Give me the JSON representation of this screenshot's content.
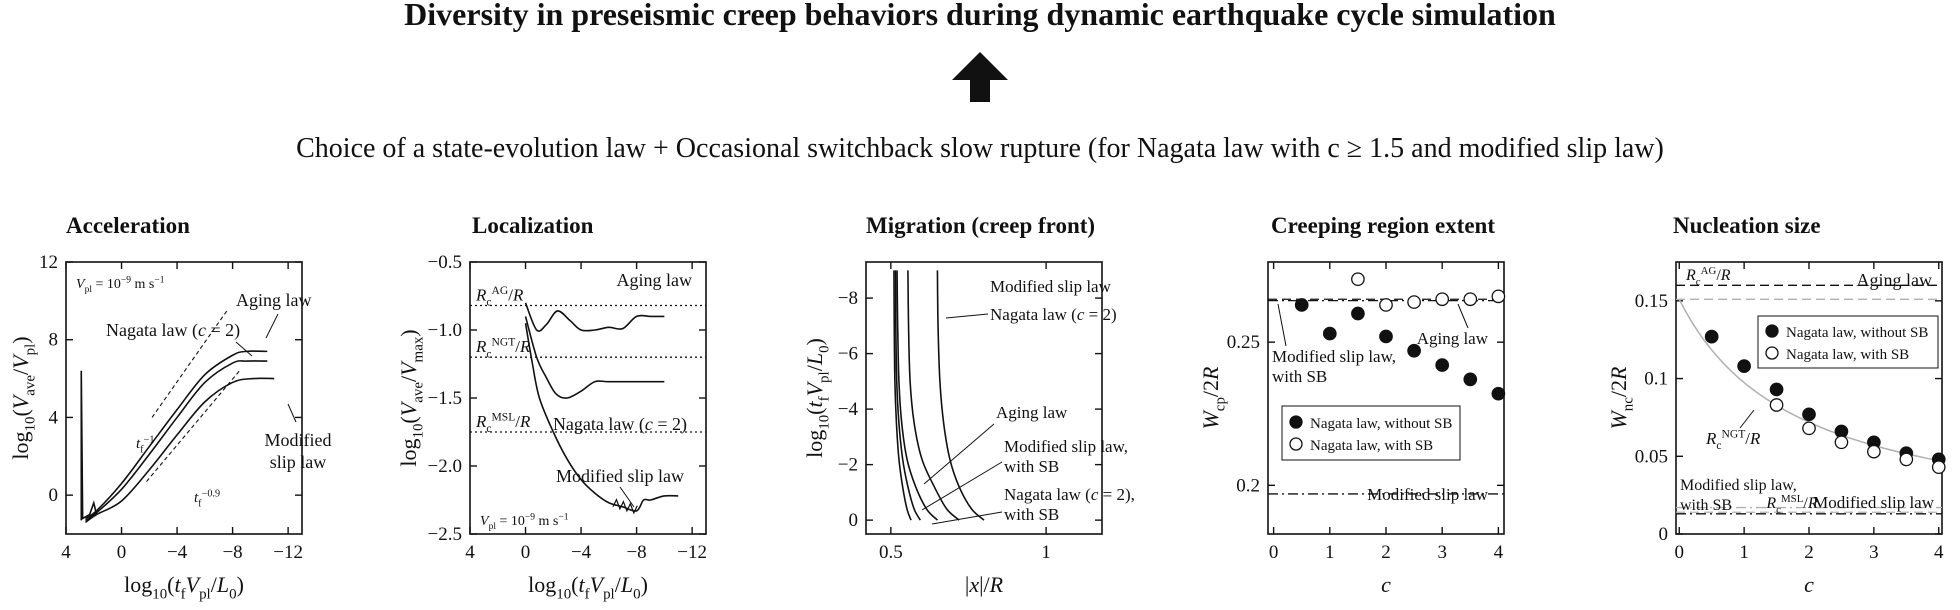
{
  "title": "Diversity in preseismic creep behaviors during dynamic earthquake cycle simulation",
  "subtitle": "Choice of a state-evolution law + Occasional switchback slow rupture (for Nagata law with c ≥ 1.5 and modified slip law)",
  "arrow_icon": "up-arrow-icon",
  "colors": {
    "ink": "#111111",
    "gray_line": "#b0b0b0"
  },
  "chart_data": [
    {
      "panel_title": "Acceleration",
      "type": "line",
      "xlabel": "log10(tfVpl/L0)",
      "ylabel": "log10(Vave/Vpl)",
      "xlim": [
        4,
        -13
      ],
      "ylim": [
        -2,
        12
      ],
      "xticks": [
        "4",
        "0",
        "−4",
        "−8",
        "−12"
      ],
      "yticks": [
        "0",
        "4",
        "8",
        "12"
      ],
      "annotations": [
        "Vpl = 10⁻⁹ m s⁻¹",
        "Aging law",
        "Nagata law (c = 2)",
        "Modified slip law",
        "tf⁻¹",
        "tf⁻⁰·⁹"
      ],
      "series": [
        {
          "name": "Aging law",
          "x": [
            2.6,
            1.8,
            0,
            -2,
            -4,
            -6,
            -8,
            -9,
            -10.5
          ],
          "y": [
            -1.2,
            -0.8,
            0.6,
            2.5,
            4.4,
            6.2,
            7.2,
            7.4,
            7.4
          ]
        },
        {
          "name": "Nagata law (c = 2)",
          "x": [
            2.6,
            1.8,
            0,
            -2,
            -4,
            -6,
            -8,
            -9,
            -10.5
          ],
          "y": [
            -1.3,
            -0.9,
            0.3,
            2.1,
            4.0,
            5.8,
            6.8,
            6.9,
            6.9
          ]
        },
        {
          "name": "Modified slip law",
          "x": [
            2.6,
            1.8,
            0,
            -2,
            -4,
            -6,
            -8,
            -9.5,
            -11
          ],
          "y": [
            -1.4,
            -1.0,
            -0.3,
            1.3,
            3.1,
            4.8,
            5.8,
            6.0,
            6.0
          ]
        }
      ]
    },
    {
      "panel_title": "Localization",
      "type": "line",
      "xlabel": "log10(tfVpl/L0)",
      "ylabel": "log10(Vave/Vmax)",
      "xlim": [
        4,
        -13
      ],
      "ylim": [
        -2.5,
        -0.5
      ],
      "xticks": [
        "4",
        "0",
        "−4",
        "−8",
        "−12"
      ],
      "yticks": [
        "−0.5",
        "−1.0",
        "−1.5",
        "−2.0",
        "−2.5"
      ],
      "reference_lines": [
        {
          "label": "RcAG/R",
          "y": -0.82
        },
        {
          "label": "RcNGT/R",
          "y": -1.2
        },
        {
          "label": "RcMSL/R",
          "y": -1.75
        }
      ],
      "annotations": [
        "Vpl = 10⁻⁹ m s⁻¹"
      ],
      "series": [
        {
          "name": "Aging law",
          "x": [
            0,
            -0.8,
            -1.5,
            -2.3,
            -3.2,
            -4,
            -5,
            -6,
            -7,
            -8,
            -9,
            -10
          ],
          "y": [
            -0.8,
            -1.0,
            -0.96,
            -0.86,
            -0.93,
            -1.0,
            -1.0,
            -0.98,
            -0.99,
            -0.9,
            -0.9,
            -0.9
          ]
        },
        {
          "name": "Nagata law (c = 2)",
          "x": [
            0,
            -0.8,
            -1.5,
            -2.2,
            -3,
            -4,
            -5,
            -6,
            -8,
            -10
          ],
          "y": [
            -0.9,
            -1.2,
            -1.35,
            -1.47,
            -1.5,
            -1.45,
            -1.38,
            -1.38,
            -1.38,
            -1.38
          ]
        },
        {
          "name": "Modified slip law",
          "x": [
            0,
            -0.5,
            -1,
            -2,
            -3,
            -4,
            -5,
            -6,
            -7,
            -8,
            -8.5,
            -9,
            -10,
            -11
          ],
          "y": [
            -0.95,
            -1.25,
            -1.5,
            -1.75,
            -1.95,
            -2.1,
            -2.2,
            -2.27,
            -2.3,
            -2.33,
            -2.25,
            -2.25,
            -2.22,
            -2.22
          ]
        }
      ]
    },
    {
      "panel_title": "Migration (creep front)",
      "type": "line",
      "xlabel": "|x|/R",
      "ylabel": "log10(tfVpl/L0)",
      "xlim": [
        0.42,
        1.18
      ],
      "ylim": [
        0.5,
        -9.3
      ],
      "xticks": [
        "0.5",
        "1"
      ],
      "yticks": [
        "0",
        "−2",
        "−4",
        "−6",
        "−8"
      ],
      "annotations": [
        "Modified slip law",
        "Nagata law (c = 2)",
        "Aging law",
        "Modified slip law, with SB",
        "Nagata law (c = 2), with SB"
      ],
      "series": [
        {
          "name": "Modified slip law",
          "x": [
            0.65,
            0.652,
            0.658,
            0.67,
            0.69,
            0.72,
            0.76,
            0.8
          ],
          "y": [
            -9,
            -7,
            -5,
            -3.5,
            -2.2,
            -1.2,
            -0.4,
            0
          ]
        },
        {
          "name": "Nagata law (c = 2)",
          "x": [
            0.555,
            0.557,
            0.562,
            0.575,
            0.6,
            0.64,
            0.68,
            0.72
          ],
          "y": [
            -9,
            -7,
            -5,
            -3.5,
            -2.2,
            -1.2,
            -0.4,
            0
          ]
        },
        {
          "name": "Aging law",
          "x": [
            0.52,
            0.522,
            0.526,
            0.535,
            0.552,
            0.58,
            0.615,
            0.65
          ],
          "y": [
            -9,
            -7,
            -5,
            -3.5,
            -2.2,
            -1.2,
            -0.4,
            0
          ]
        },
        {
          "name": "Modified slip law, with SB",
          "x": [
            0.515,
            0.516,
            0.519,
            0.526,
            0.538,
            0.555,
            0.575,
            0.595
          ],
          "y": [
            -9,
            -7,
            -5,
            -3.5,
            -2.2,
            -1.2,
            -0.4,
            0
          ]
        },
        {
          "name": "Nagata law (c = 2), with SB",
          "x": [
            0.51,
            0.511,
            0.513,
            0.518,
            0.526,
            0.538,
            0.552,
            0.565
          ],
          "y": [
            -9,
            -7,
            -5,
            -3.5,
            -2.2,
            -1.2,
            -0.4,
            0
          ]
        }
      ]
    },
    {
      "panel_title": "Creeping region extent",
      "type": "scatter",
      "xlabel": "c",
      "ylabel": "Wcp/2R",
      "xlim": [
        -0.1,
        4.1
      ],
      "ylim": [
        0.183,
        0.278
      ],
      "xticks": [
        "0",
        "1",
        "2",
        "3",
        "4"
      ],
      "yticks": [
        "0.2",
        "0.25"
      ],
      "legend": [
        "Nagata law, without SB",
        "Nagata law, with SB"
      ],
      "legend_position": "lower-left",
      "reference_lines": [
        {
          "label": "Aging law",
          "y": 0.265,
          "style": "dashed"
        },
        {
          "label": "Modified slip law, with SB",
          "y": 0.2645,
          "style": "dashdot"
        },
        {
          "label": "Modified slip law",
          "y": 0.197,
          "style": "dashdot"
        }
      ],
      "series": [
        {
          "name": "Nagata law, without SB",
          "marker": "filled",
          "x": [
            0.5,
            1,
            1.5,
            2,
            2.5,
            3,
            3.5,
            4
          ],
          "y": [
            0.263,
            0.253,
            0.26,
            0.252,
            0.247,
            0.242,
            0.237,
            0.232
          ]
        },
        {
          "name": "Nagata law, with SB",
          "marker": "open",
          "x": [
            1.5,
            2,
            2.5,
            3,
            3.5,
            4
          ],
          "y": [
            0.272,
            0.263,
            0.264,
            0.265,
            0.265,
            0.266
          ]
        }
      ]
    },
    {
      "panel_title": "Nucleation size",
      "type": "scatter",
      "xlabel": "c",
      "ylabel": "Wnc/2R",
      "xlim": [
        -0.05,
        4.05
      ],
      "ylim": [
        0,
        0.175
      ],
      "xticks": [
        "0",
        "1",
        "2",
        "3",
        "4"
      ],
      "yticks": [
        "0",
        "0.05",
        "0.1",
        "0.15"
      ],
      "legend": [
        "Nagata law, without SB",
        "Nagata law, with SB"
      ],
      "legend_position": "upper-right",
      "reference_lines": [
        {
          "label": "Aging law",
          "y": 0.16,
          "style": "dashed"
        },
        {
          "label": "RcAG/R",
          "y": 0.151,
          "style": "dashed-gray"
        },
        {
          "label": "Modified slip law, with SB",
          "y": 0.017,
          "style": "dashdot-gray"
        },
        {
          "label": "RcMSL/R",
          "y": 0.014,
          "style": "dashed-gray"
        },
        {
          "label": "Modified slip law",
          "y": 0.013,
          "style": "dashdot"
        }
      ],
      "annotations": [
        "RcNGT/R"
      ],
      "series": [
        {
          "name": "Nagata law, without SB",
          "marker": "filled",
          "x": [
            0.5,
            1,
            1.5,
            2,
            2.5,
            3,
            3.5,
            4
          ],
          "y": [
            0.127,
            0.108,
            0.093,
            0.077,
            0.066,
            0.059,
            0.052,
            0.048
          ]
        },
        {
          "name": "Nagata law, with SB",
          "marker": "open",
          "x": [
            1.5,
            2,
            2.5,
            3,
            3.5,
            4
          ],
          "y": [
            0.083,
            0.068,
            0.059,
            0.053,
            0.048,
            0.043
          ]
        }
      ]
    }
  ]
}
